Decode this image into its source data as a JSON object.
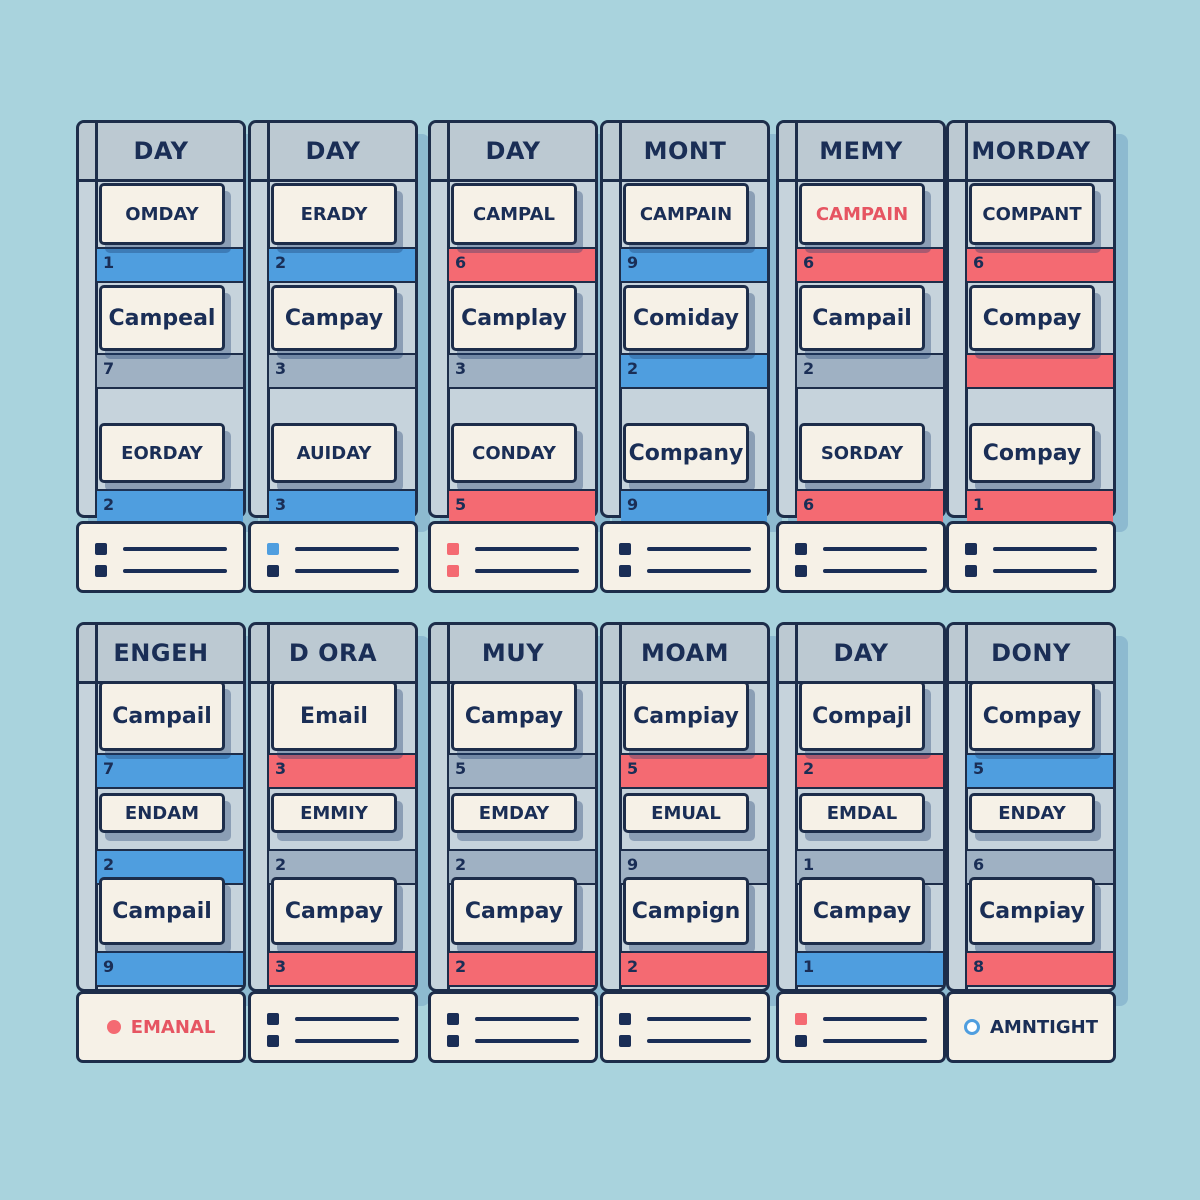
{
  "colors": {
    "background": "#a9d3dd",
    "ink": "#1a2e56",
    "blue": "#4f9edf",
    "red": "#f46a72",
    "paper": "#f6f1e7"
  },
  "columns": [
    {
      "header": "DAY",
      "cells": [
        "OMDAY",
        "Campeal",
        "EORDAY"
      ],
      "bands": [
        {
          "num": "1",
          "color": "blue"
        },
        {
          "num": "7",
          "color": "grey"
        },
        {
          "num": "2",
          "color": "blue"
        }
      ],
      "footer": {
        "type": "legend",
        "marks": [
          "ink",
          "ink"
        ]
      }
    },
    {
      "header": "DAY",
      "cells": [
        "ERADY",
        "Campay",
        "AUIDAY"
      ],
      "bands": [
        {
          "num": "2",
          "color": "blue"
        },
        {
          "num": "3",
          "color": "grey"
        },
        {
          "num": "3",
          "color": "blue"
        }
      ],
      "footer": {
        "type": "legend",
        "marks": [
          "blue",
          "ink"
        ]
      }
    },
    {
      "header": "DAY",
      "cells": [
        "CAMPAL",
        "Camplay",
        "CONDAY"
      ],
      "bands": [
        {
          "num": "6",
          "color": "red"
        },
        {
          "num": "3",
          "color": "grey"
        },
        {
          "num": "5",
          "color": "red"
        }
      ],
      "footer": {
        "type": "legend",
        "marks": [
          "red",
          "red"
        ]
      }
    },
    {
      "header": "MONT",
      "cells": [
        "CAMPAIN",
        "Comiday",
        "Company"
      ],
      "bands": [
        {
          "num": "9",
          "color": "blue"
        },
        {
          "num": "2",
          "color": "blue"
        },
        {
          "num": "9",
          "color": "blue"
        }
      ],
      "footer": {
        "type": "legend",
        "marks": [
          "ink",
          "ink"
        ]
      }
    },
    {
      "header": "MEMY",
      "cells": [
        "CAMPAIN",
        "Campail",
        "SORDAY"
      ],
      "bands": [
        {
          "num": "6",
          "color": "red"
        },
        {
          "num": "2",
          "color": "grey"
        },
        {
          "num": "6",
          "color": "red"
        }
      ],
      "footer": {
        "type": "legend",
        "marks": [
          "ink",
          "ink"
        ]
      },
      "red_first_cell": true
    },
    {
      "header": "MORDAY",
      "cells": [
        "COMPANT",
        "Compay",
        "Compay"
      ],
      "bands": [
        {
          "num": "6",
          "color": "red"
        },
        {
          "num": "",
          "color": "red"
        },
        {
          "num": "1",
          "color": "red"
        }
      ],
      "footer": {
        "type": "legend",
        "marks": [
          "ink",
          "ink"
        ]
      }
    },
    {
      "header": "ENGEH",
      "cells": [
        "Campail",
        "ENDAM",
        "Campail"
      ],
      "bands": [
        {
          "num": "7",
          "color": "blue"
        },
        {
          "num": "2",
          "color": "blue"
        },
        {
          "num": "9",
          "color": "blue"
        }
      ],
      "footer": {
        "type": "label",
        "text": "EMANAL",
        "icon": "red-dot"
      }
    },
    {
      "header": "D ORA",
      "cells": [
        "Email",
        "EMMIY",
        "Campay"
      ],
      "bands": [
        {
          "num": "3",
          "color": "red"
        },
        {
          "num": "2",
          "color": "grey"
        },
        {
          "num": "3",
          "color": "red"
        }
      ],
      "footer": {
        "type": "legend",
        "marks": [
          "ink",
          "ink"
        ]
      }
    },
    {
      "header": "MUY",
      "cells": [
        "Campay",
        "EMDAY",
        "Campay"
      ],
      "bands": [
        {
          "num": "5",
          "color": "grey"
        },
        {
          "num": "2",
          "color": "grey"
        },
        {
          "num": "2",
          "color": "red"
        }
      ],
      "footer": {
        "type": "legend",
        "marks": [
          "ink",
          "ink"
        ]
      }
    },
    {
      "header": "MOAM",
      "cells": [
        "Campiay",
        "EMUAL",
        "Campign"
      ],
      "bands": [
        {
          "num": "5",
          "color": "red"
        },
        {
          "num": "9",
          "color": "grey"
        },
        {
          "num": "2",
          "color": "red"
        }
      ],
      "footer": {
        "type": "legend",
        "marks": [
          "ink",
          "ink"
        ]
      }
    },
    {
      "header": "DAY",
      "cells": [
        "Compajl",
        "EMDAL",
        "Campay"
      ],
      "bands": [
        {
          "num": "2",
          "color": "red"
        },
        {
          "num": "1",
          "color": "grey"
        },
        {
          "num": "1",
          "color": "blue"
        }
      ],
      "footer": {
        "type": "legend",
        "marks": [
          "red",
          "ink"
        ]
      }
    },
    {
      "header": "DONY",
      "cells": [
        "Compay",
        "ENDAY",
        "Campiay"
      ],
      "bands": [
        {
          "num": "5",
          "color": "blue"
        },
        {
          "num": "6",
          "color": "grey"
        },
        {
          "num": "8",
          "color": "red"
        }
      ],
      "footer": {
        "type": "label",
        "text": "AMNTIGHT",
        "icon": "blue-ring"
      }
    }
  ]
}
